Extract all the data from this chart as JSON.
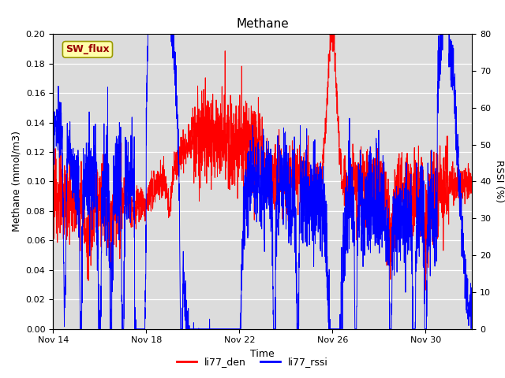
{
  "title": "Methane",
  "ylabel_left": "Methane (mmol/m3)",
  "ylabel_right": "RSSI (%)",
  "xlabel": "Time",
  "ylim_left": [
    0.0,
    0.2
  ],
  "ylim_right": [
    0,
    80
  ],
  "bg_color": "#dcdcdc",
  "fig_bg_color": "#ffffff",
  "sw_flux_label": "SW_flux",
  "legend_labels": [
    "li77_den",
    "li77_rssi"
  ],
  "legend_colors": [
    "red",
    "blue"
  ],
  "line_color_red": "red",
  "line_color_blue": "blue",
  "linewidth": 0.7,
  "yticks_left": [
    0.0,
    0.02,
    0.04,
    0.06,
    0.08,
    0.1,
    0.12,
    0.14,
    0.16,
    0.18,
    0.2
  ],
  "yticks_right": [
    0,
    10,
    20,
    30,
    40,
    50,
    60,
    70,
    80
  ],
  "xtick_labels": [
    "Nov 14",
    "Nov 18",
    "Nov 22",
    "Nov 26",
    "Nov 30"
  ],
  "xtick_positions": [
    0,
    4,
    8,
    12,
    16
  ],
  "xlim": [
    0,
    18
  ]
}
